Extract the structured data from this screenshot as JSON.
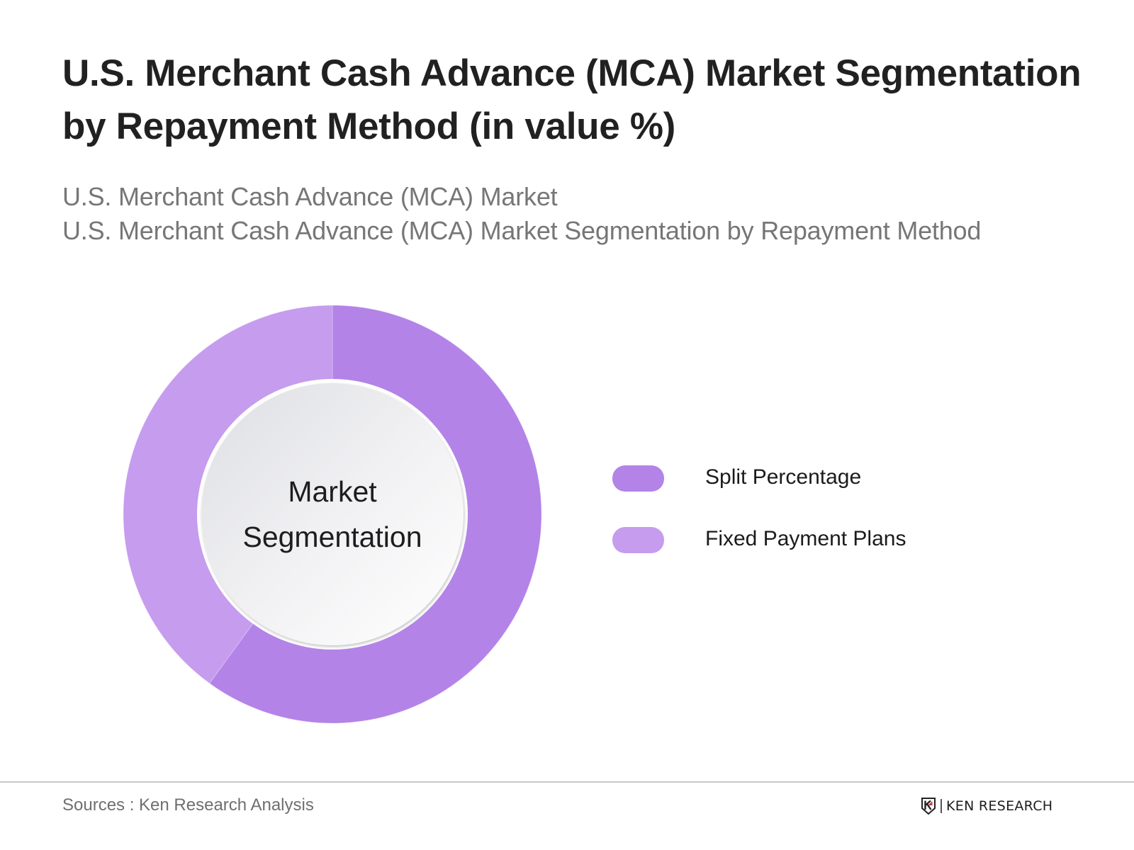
{
  "header": {
    "title": "U.S. Merchant Cash Advance (MCA) Market Segmentation by Repayment Method (in value %)",
    "subtitles": [
      "U.S. Merchant Cash Advance (MCA) Market",
      "U.S. Merchant Cash Advance (MCA) Market Segmentation by Repayment Method"
    ]
  },
  "donut": {
    "center_label_line1": "Market",
    "center_label_line2": "Segmentation"
  },
  "legend": {
    "items": [
      {
        "label": "Split Percentage",
        "color": "#B383E8"
      },
      {
        "label": "Fixed Payment Plans",
        "color": "#C69CEE"
      }
    ]
  },
  "footer": {
    "source": "Sources : Ken Research Analysis",
    "logo_text": "KEN RESEARCH",
    "logo_accent_color": "#D0353F"
  },
  "chart_data": {
    "type": "pie",
    "subtype": "donut",
    "title": "U.S. Merchant Cash Advance (MCA) Market Segmentation by Repayment Method (in value %)",
    "subtitle": "U.S. Merchant Cash Advance (MCA) Market Segmentation by Repayment Method",
    "center_text": "Market Segmentation",
    "categories": [
      "Split Percentage",
      "Fixed Payment Plans"
    ],
    "values": [
      60,
      40
    ],
    "unit": "%",
    "colors": [
      "#B383E8",
      "#C69CEE"
    ],
    "start_angle_deg": 0,
    "direction": "clockwise",
    "data_labels_shown": false,
    "legend_position": "right",
    "source": "Sources : Ken Research Analysis"
  }
}
